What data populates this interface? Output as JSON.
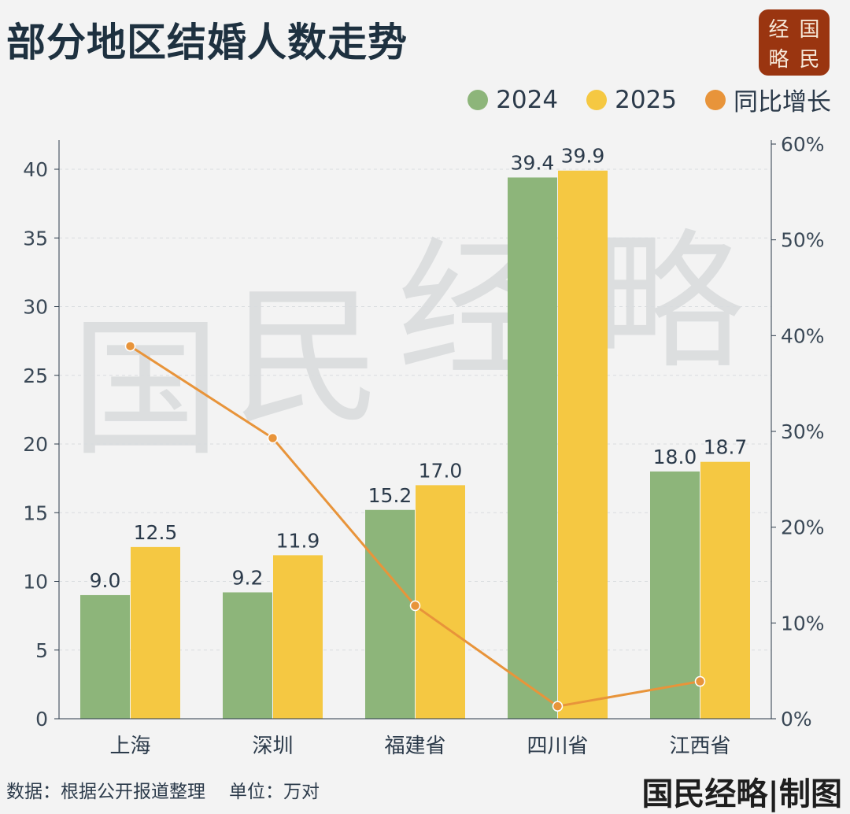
{
  "header": {
    "title": "部分地区结婚人数走势",
    "logo_text": [
      "经",
      "国",
      "略",
      "民"
    ]
  },
  "colors": {
    "s2024": "#8db57a",
    "s2025": "#f5c842",
    "growth": "#e8943a",
    "background": "#f3f3f3"
  },
  "watermark": "国民经略",
  "chart_data": {
    "type": "bar",
    "title": "部分地区结婚人数走势",
    "categories": [
      "上海",
      "深圳",
      "福建省",
      "四川省",
      "江西省"
    ],
    "series": [
      {
        "name": "2024",
        "axis": "left",
        "type": "bar",
        "values": [
          9.0,
          9.2,
          15.2,
          39.4,
          18.0
        ],
        "labels": [
          "9.0",
          "9.2",
          "15.2",
          "39.4",
          "18.0"
        ]
      },
      {
        "name": "2025",
        "axis": "left",
        "type": "bar",
        "values": [
          12.5,
          11.9,
          17.0,
          39.9,
          18.7
        ],
        "labels": [
          "12.5",
          "11.9",
          "17.0",
          "39.9",
          "18.7"
        ]
      },
      {
        "name": "同比增长",
        "axis": "right",
        "type": "line",
        "values": [
          38.9,
          29.3,
          11.8,
          1.3,
          3.9
        ]
      }
    ],
    "y_left": {
      "range": [
        0,
        42
      ],
      "ticks": [
        "0",
        "5",
        "10",
        "15",
        "20",
        "25",
        "30",
        "35",
        "40"
      ]
    },
    "y_right": {
      "range": [
        0,
        60
      ],
      "ticks": [
        "0%",
        "10%",
        "20%",
        "30%",
        "40%",
        "50%",
        "60%"
      ]
    },
    "grid": "horizontal dashed",
    "legend_placement": "top-right"
  },
  "footer": {
    "source": "数据：根据公开报道整理",
    "unit": "单位：万对",
    "credit": "国民经略|制图"
  }
}
